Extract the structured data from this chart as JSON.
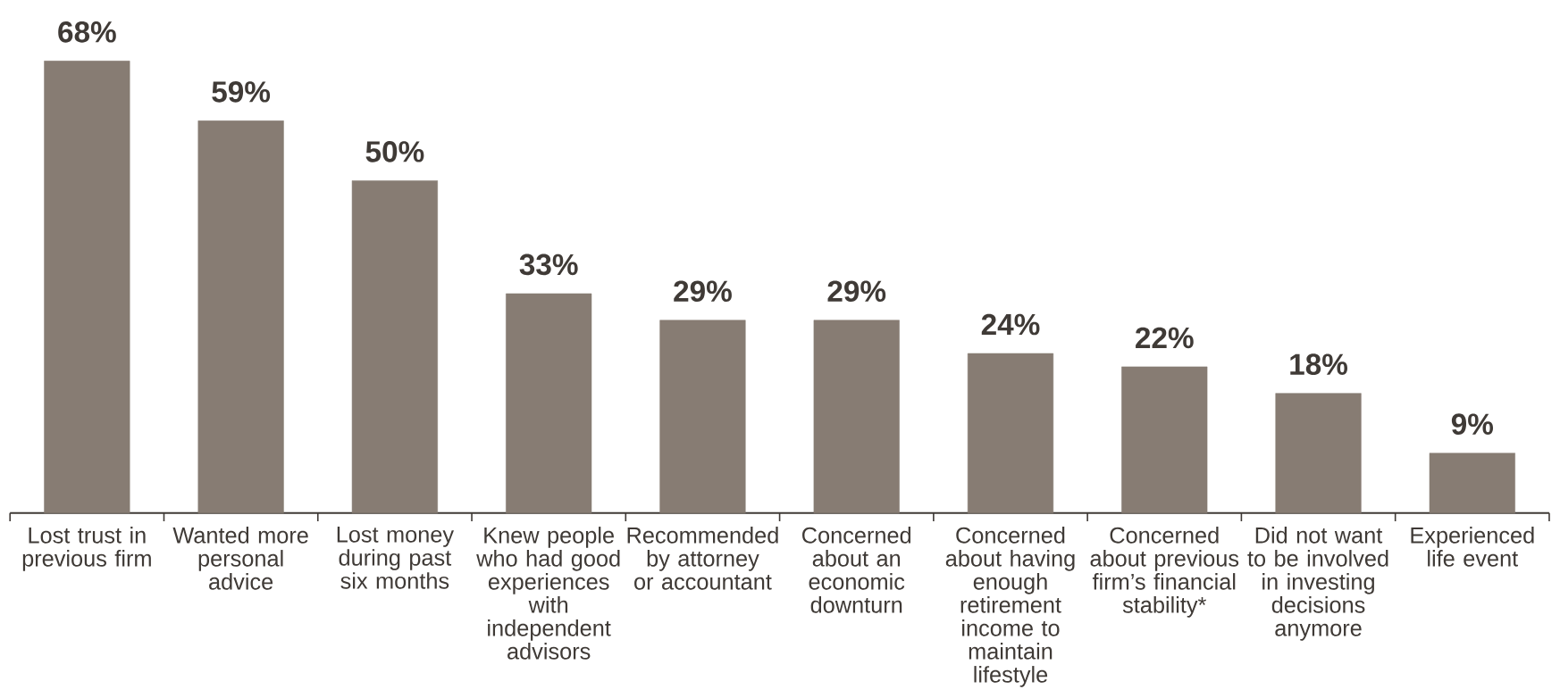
{
  "chart_data": {
    "type": "bar",
    "categories": [
      "Lost trust in previous firm",
      "Wanted more personal advice",
      "Lost money during past six months",
      "Knew people who had good experiences with independent advisors",
      "Recommended by attorney or accountant",
      "Concerned about an economic downturn",
      "Concerned about having enough retirement income to maintain lifestyle",
      "Concerned about previous firm’s financial stability*",
      "Did not want to be involved in investing decisions anymore",
      "Experienced life event"
    ],
    "values": [
      68,
      59,
      50,
      33,
      29,
      29,
      24,
      22,
      18,
      9
    ],
    "value_labels": [
      "68%",
      "59%",
      "50%",
      "33%",
      "29%",
      "29%",
      "24%",
      "22%",
      "18%",
      "9%"
    ],
    "color": "#877c73"
  }
}
